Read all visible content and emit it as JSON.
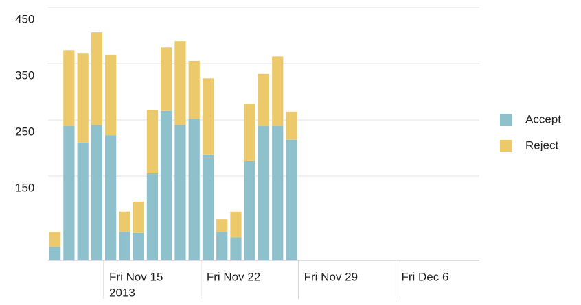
{
  "chart_data": {
    "type": "stacked-bar",
    "x": [
      "2013-11-11",
      "2013-11-12",
      "2013-11-13",
      "2013-11-14",
      "2013-11-15",
      "2013-11-16",
      "2013-11-17",
      "2013-11-18",
      "2013-11-19",
      "2013-11-20",
      "2013-11-21",
      "2013-11-22",
      "2013-11-23",
      "2013-11-24",
      "2013-11-25",
      "2013-11-26",
      "2013-11-27",
      "2013-11-28"
    ],
    "series": [
      {
        "name": "Accept",
        "color": "#8fc1cd",
        "values": [
          24,
          239,
          210,
          241,
          223,
          51,
          49,
          155,
          266,
          241,
          252,
          188,
          51,
          41,
          177,
          239,
          239,
          215
        ]
      },
      {
        "name": "Reject",
        "color": "#ecca6b",
        "values": [
          27,
          135,
          158,
          165,
          143,
          36,
          56,
          113,
          113,
          149,
          103,
          136,
          22,
          46,
          101,
          93,
          124,
          50
        ]
      }
    ],
    "xlim": [
      "2013-11-11",
      "2013-12-12"
    ],
    "xticks": [
      {
        "value": "2013-11-15",
        "label": "Fri Nov 15"
      },
      {
        "value": "2013-11-22",
        "label": "Fri Nov 22"
      },
      {
        "value": "2013-11-29",
        "label": "Fri Nov 29"
      },
      {
        "value": "2013-12-06",
        "label": "Fri Dec 6"
      }
    ],
    "x_sublabel": "2013",
    "ylim": [
      0,
      450
    ],
    "yticks": [
      150,
      250,
      350,
      450
    ],
    "grid": true,
    "legend": "right"
  }
}
